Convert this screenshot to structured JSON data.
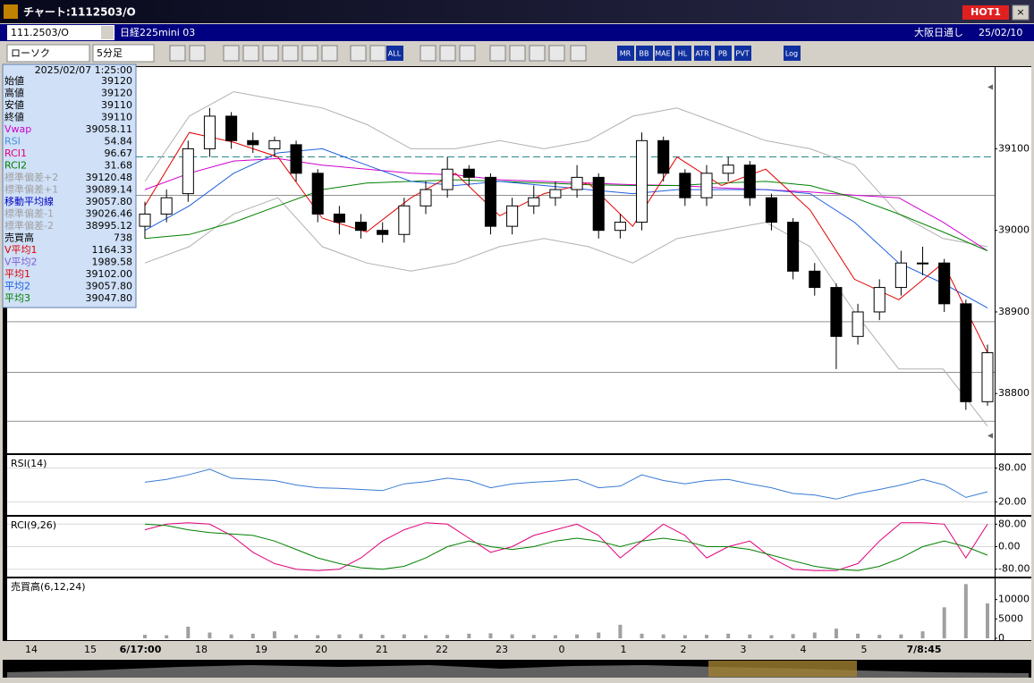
{
  "window": {
    "title": "チャート:1112503/O",
    "hot": "HOT1"
  },
  "header": {
    "code": "111.2503/O",
    "name": "日経225mini 03",
    "session": "大阪日通し",
    "date": "25/02/10"
  },
  "toolbar": {
    "chart_type": "ローソク",
    "interval": "5分足",
    "buttons": [
      "ALL",
      "MR",
      "BB",
      "MAE",
      "HL",
      "ATR",
      "PB",
      "PVT",
      "Log"
    ]
  },
  "info": {
    "time": "2025/02/07 1:25:00",
    "rows": [
      {
        "label": "始値",
        "value": "39120",
        "color": "#000000"
      },
      {
        "label": "高値",
        "value": "39120",
        "color": "#000000"
      },
      {
        "label": "安値",
        "value": "39110",
        "color": "#000000"
      },
      {
        "label": "終値",
        "value": "39110",
        "color": "#000000"
      },
      {
        "label": "Vwap",
        "value": "39058.11",
        "color": "#d000d0"
      },
      {
        "label": "RSI",
        "value": "54.84",
        "color": "#4a90d9"
      },
      {
        "label": "RCI1",
        "value": "96.67",
        "color": "#e0007a"
      },
      {
        "label": "RCI2",
        "value": "31.68",
        "color": "#008000"
      },
      {
        "label": "標準偏差+2",
        "value": "39120.48",
        "color": "#a0a0a0"
      },
      {
        "label": "標準偏差+1",
        "value": "39089.14",
        "color": "#a0a0a0"
      },
      {
        "label": "移動平均線",
        "value": "39057.80",
        "color": "#0000c0"
      },
      {
        "label": "標準偏差-1",
        "value": "39026.46",
        "color": "#a0a0a0"
      },
      {
        "label": "標準偏差-2",
        "value": "38995.12",
        "color": "#a0a0a0"
      },
      {
        "label": "売買高",
        "value": "738",
        "color": "#000000"
      },
      {
        "label": "V平均1",
        "value": "1164.33",
        "color": "#e00000"
      },
      {
        "label": "V平均2",
        "value": "1989.58",
        "color": "#8060d0"
      },
      {
        "label": "平均1",
        "value": "39102.00",
        "color": "#e00000"
      },
      {
        "label": "平均2",
        "value": "39057.80",
        "color": "#2060e0"
      },
      {
        "label": "平均3",
        "value": "39047.80",
        "color": "#008000"
      }
    ]
  },
  "time_axis": {
    "labels": [
      "14",
      "15",
      "6/17:00",
      "18",
      "19",
      "20",
      "21",
      "22",
      "23",
      "0",
      "1",
      "2",
      "3",
      "4",
      "5",
      "7/8:45"
    ]
  },
  "chart_data": [
    {
      "type": "candlestick",
      "ylim": [
        38729,
        39198
      ],
      "yticks": [
        38800,
        38900,
        39000,
        39100
      ],
      "open": [
        39005,
        39020,
        39045,
        39100,
        39140,
        39110,
        39100,
        39105,
        39070,
        39020,
        39010,
        39000,
        38995,
        39030,
        39050,
        39075,
        39065,
        39005,
        39030,
        39040,
        39050,
        39065,
        39000,
        39010,
        39110,
        39070,
        39040,
        39070,
        39080,
        39040,
        39010,
        38950,
        38930,
        38870,
        38900,
        38930,
        38960,
        38960,
        38910,
        38790
      ],
      "high": [
        39035,
        39050,
        39110,
        39150,
        39145,
        39120,
        39115,
        39110,
        39075,
        39030,
        39020,
        39010,
        39040,
        39060,
        39090,
        39080,
        39070,
        39040,
        39055,
        39060,
        39080,
        39070,
        39020,
        39120,
        39115,
        39075,
        39080,
        39090,
        39085,
        39045,
        39015,
        38960,
        38935,
        38910,
        38940,
        38975,
        38980,
        38965,
        38915,
        38860
      ],
      "low": [
        38990,
        39010,
        39035,
        39090,
        39100,
        39095,
        39090,
        39060,
        39010,
        38995,
        38990,
        38985,
        38985,
        39020,
        39040,
        39055,
        38995,
        38995,
        39020,
        39030,
        39040,
        38990,
        38990,
        39000,
        39060,
        39030,
        39030,
        39060,
        39030,
        39000,
        38940,
        38920,
        38830,
        38860,
        38890,
        38920,
        38945,
        38900,
        38780,
        38785
      ],
      "close": [
        39020,
        39040,
        39100,
        39140,
        39110,
        39105,
        39110,
        39070,
        39020,
        39010,
        39000,
        38995,
        39030,
        39050,
        39075,
        39065,
        39005,
        39030,
        39040,
        39050,
        39065,
        39000,
        39010,
        39110,
        39070,
        39040,
        39070,
        39080,
        39040,
        39010,
        38950,
        38930,
        38870,
        38900,
        38930,
        38960,
        38960,
        38910,
        38790,
        38850
      ],
      "lines": [
        {
          "color": "#b0b0b0",
          "values": [
            39060,
            39140,
            39170,
            39160,
            39150,
            39130,
            39100,
            39100,
            39110,
            39100,
            39110,
            39140,
            39150,
            39130,
            39110,
            39100,
            39080,
            39020,
            38990,
            38980
          ]
        },
        {
          "color": "#b0b0b0",
          "values": [
            38960,
            38980,
            39020,
            39040,
            38980,
            38960,
            38950,
            38960,
            38980,
            38990,
            38980,
            38960,
            38990,
            39000,
            39010,
            38980,
            38900,
            38830,
            38830,
            38760
          ]
        },
        {
          "color": "#d000d0",
          "values": [
            39050,
            39070,
            39085,
            39088,
            39080,
            39075,
            39070,
            39068,
            39062,
            39060,
            39058,
            39056,
            39055,
            39052,
            39050,
            39047,
            39043,
            39040,
            39010,
            38975
          ]
        },
        {
          "color": "#008000",
          "values": [
            38990,
            38995,
            39010,
            39030,
            39050,
            39058,
            39060,
            39062,
            39060,
            39058,
            39056,
            39055,
            39055,
            39058,
            39060,
            39055,
            39040,
            39020,
            38998,
            38975
          ]
        },
        {
          "color": "#2060e0",
          "values": [
            39000,
            39030,
            39070,
            39095,
            39100,
            39080,
            39060,
            39055,
            39060,
            39055,
            39050,
            39045,
            39050,
            39050,
            39050,
            39045,
            39010,
            38960,
            38935,
            38905
          ]
        },
        {
          "color": "#e00000",
          "values": [
            39030,
            39120,
            39108,
            39090,
            39015,
            38998,
            39040,
            39070,
            39018,
            39045,
            39058,
            39005,
            39090,
            39055,
            39075,
            39025,
            38940,
            38915,
            38960,
            38850
          ]
        }
      ],
      "ref_lines": [
        {
          "value": 39090,
          "color": "#2a8a8a",
          "dashed": true
        },
        {
          "value": 39043,
          "color": "#909090",
          "dashed": false
        },
        {
          "value": 38888,
          "color": "#909090",
          "dashed": false
        },
        {
          "value": 38826,
          "color": "#909090",
          "dashed": false
        },
        {
          "value": 38766,
          "color": "#909090",
          "dashed": false
        }
      ]
    },
    {
      "type": "line",
      "title": "RSI(14)",
      "ylim": [
        0,
        100
      ],
      "yticks": [
        {
          "value": 80,
          "label": "80.00"
        },
        {
          "value": 20,
          "label": "20.00"
        }
      ],
      "grid": true,
      "series": [
        {
          "color": "#3a7bd5",
          "values": [
            55,
            60,
            68,
            78,
            62,
            60,
            58,
            50,
            45,
            44,
            42,
            40,
            52,
            56,
            62,
            58,
            45,
            52,
            55,
            57,
            60,
            45,
            48,
            68,
            58,
            52,
            58,
            60,
            52,
            45,
            35,
            32,
            25,
            35,
            42,
            50,
            60,
            50,
            28,
            38
          ]
        }
      ]
    },
    {
      "type": "line",
      "title": "RCI(9,26)",
      "ylim": [
        -100,
        100
      ],
      "yticks": [
        {
          "value": 80,
          "label": "80.00"
        },
        {
          "value": 0,
          "label": "0.00"
        },
        {
          "value": -80,
          "label": "-80.00"
        }
      ],
      "grid": true,
      "series": [
        {
          "color": "#e0007a",
          "values": [
            60,
            80,
            85,
            80,
            40,
            -20,
            -60,
            -80,
            -85,
            -80,
            -40,
            20,
            60,
            85,
            80,
            30,
            -20,
            0,
            40,
            60,
            80,
            40,
            -40,
            20,
            80,
            40,
            -40,
            0,
            20,
            -40,
            -80,
            -85,
            -85,
            -60,
            20,
            85,
            85,
            80,
            -40,
            80
          ]
        },
        {
          "color": "#008000",
          "values": [
            80,
            75,
            60,
            50,
            45,
            40,
            20,
            -10,
            -40,
            -60,
            -75,
            -80,
            -70,
            -40,
            0,
            20,
            0,
            -10,
            0,
            20,
            30,
            20,
            0,
            20,
            30,
            20,
            0,
            0,
            -10,
            -30,
            -50,
            -70,
            -80,
            -85,
            -70,
            -40,
            0,
            20,
            0,
            -30
          ]
        }
      ]
    },
    {
      "type": "bar",
      "title": "売買高(6,12,24)",
      "ylim": [
        0,
        15000
      ],
      "yticks": [
        0,
        5000,
        10000
      ],
      "grid": false,
      "color": "#a0a0a0",
      "values": [
        900,
        800,
        3000,
        1500,
        1000,
        1200,
        1800,
        900,
        800,
        1000,
        1100,
        900,
        1000,
        800,
        900,
        1200,
        1300,
        1000,
        900,
        800,
        1000,
        1500,
        3500,
        1200,
        1000,
        800,
        900,
        1200,
        1000,
        800,
        1100,
        1500,
        2500,
        1200,
        900,
        1000,
        1800,
        8000,
        14000,
        9000
      ]
    }
  ]
}
